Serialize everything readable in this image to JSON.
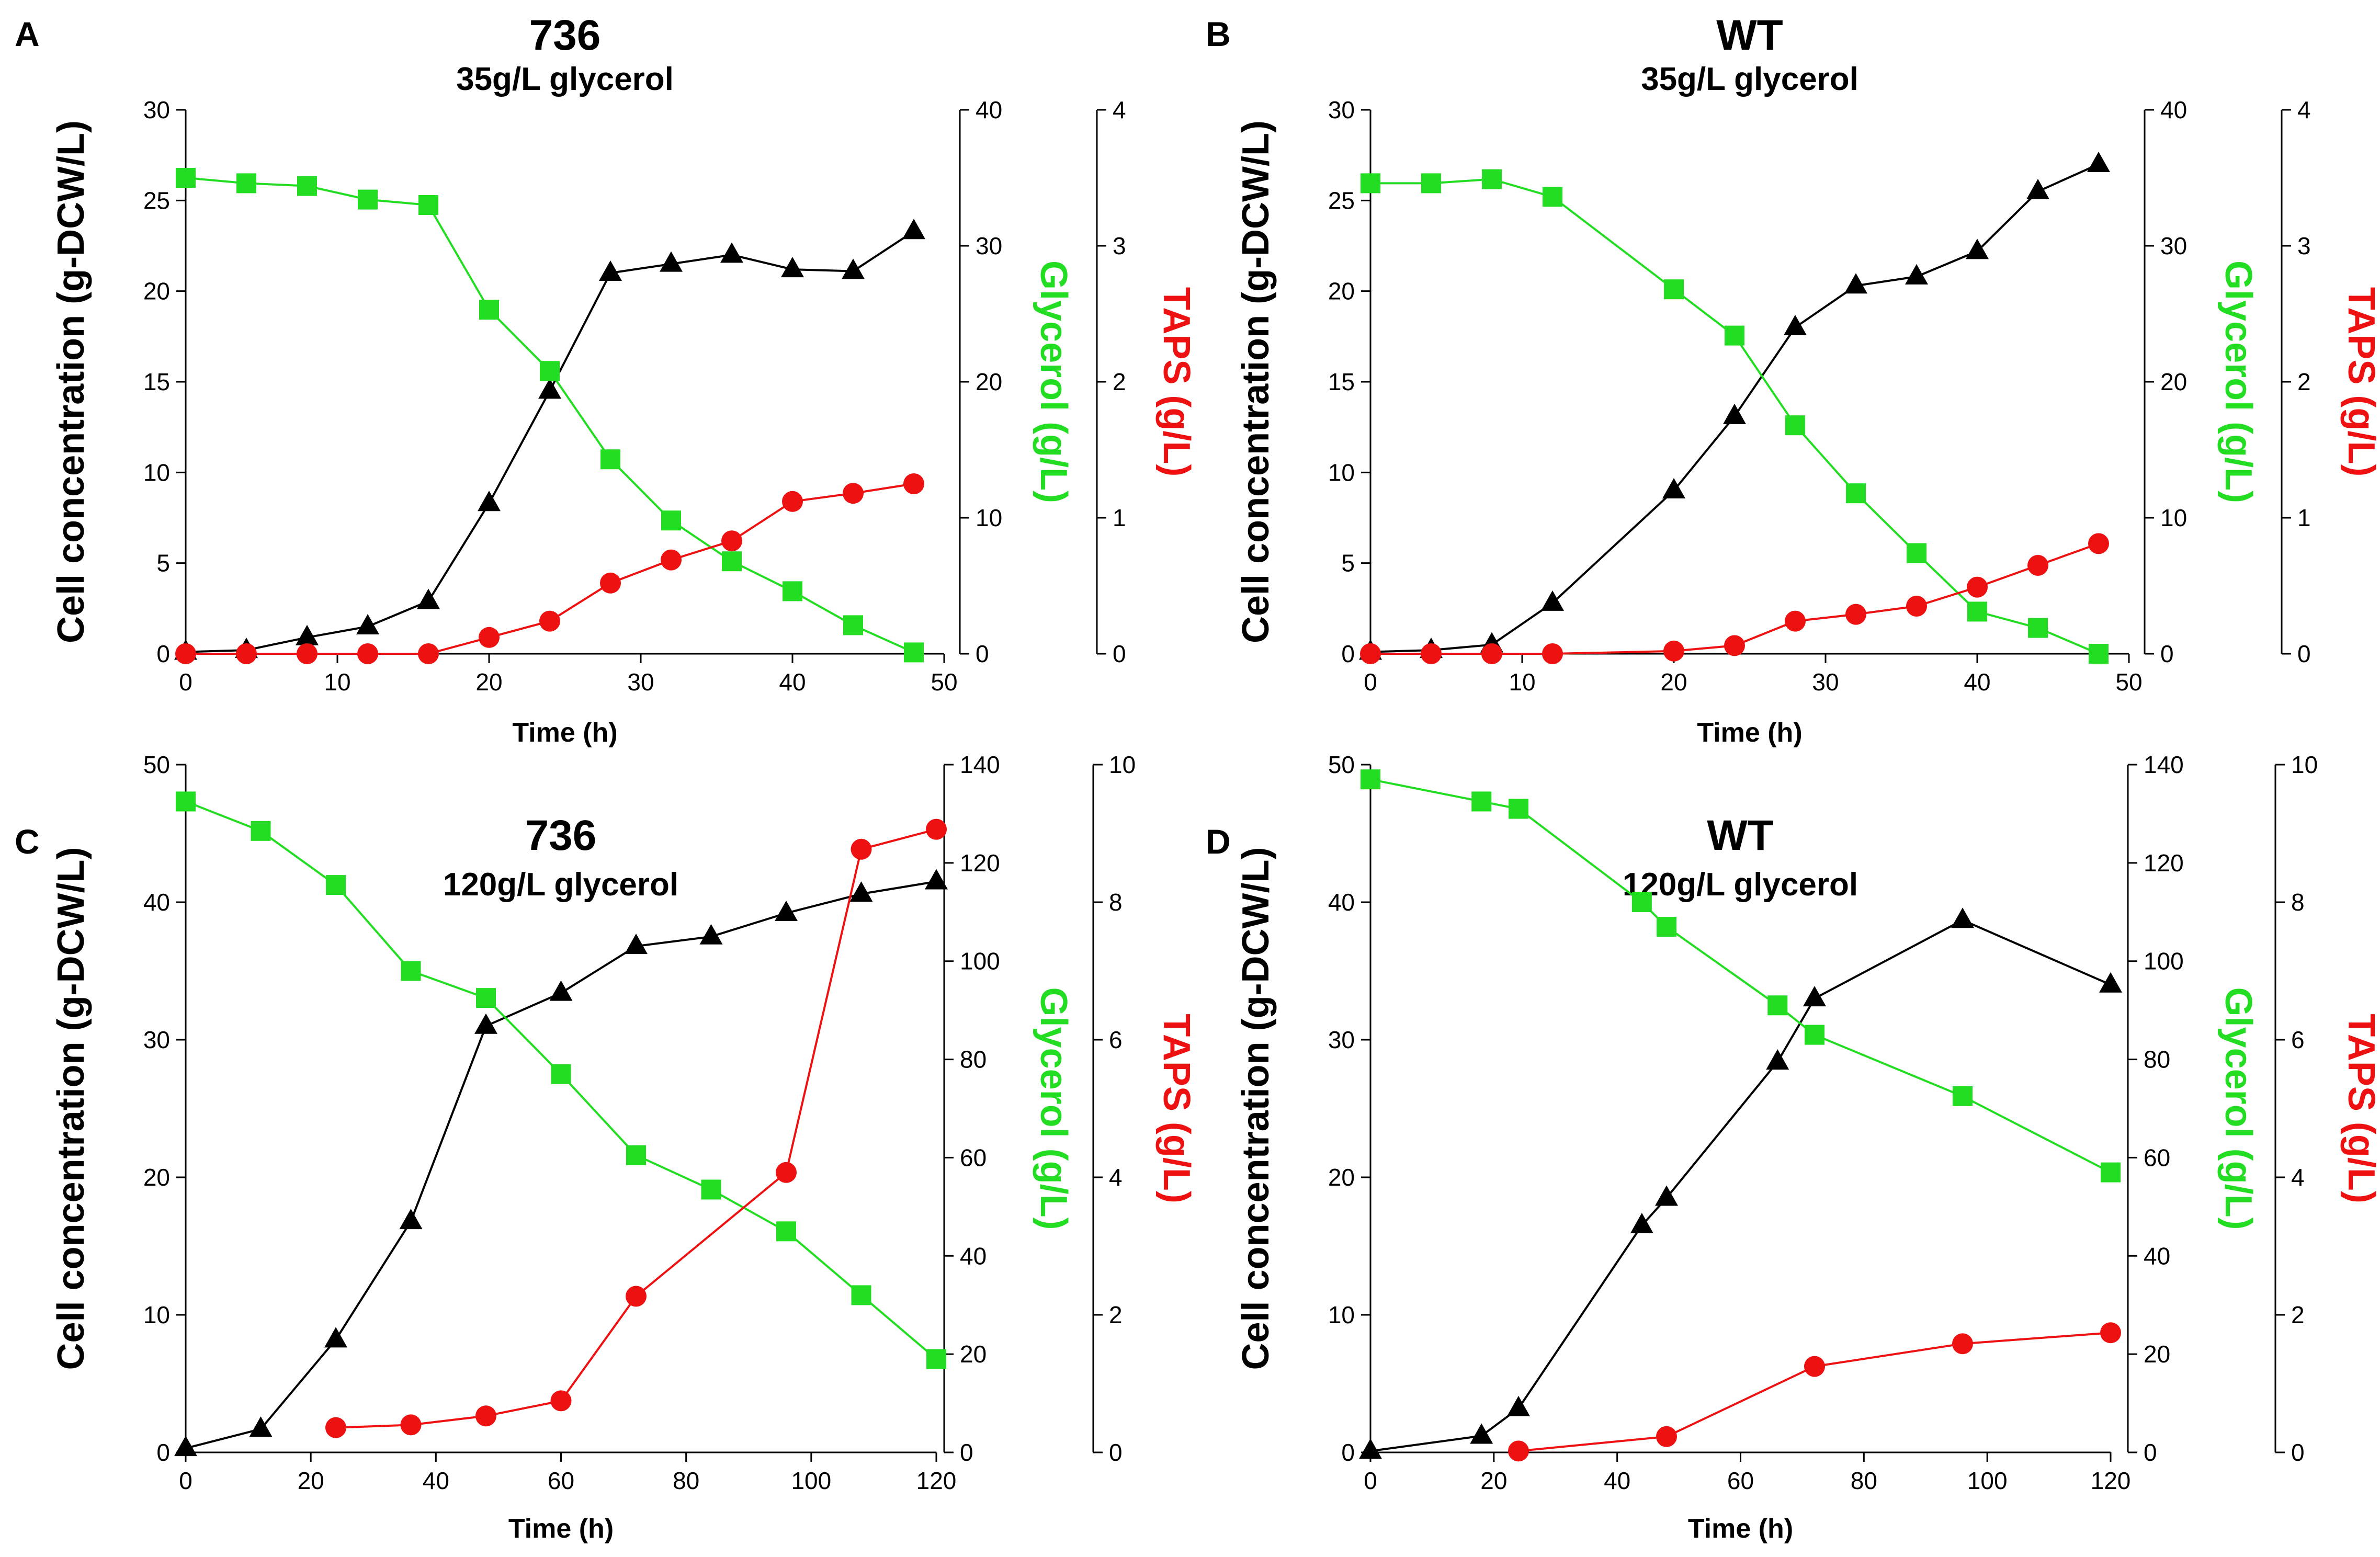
{
  "colors": {
    "cell": "#000000",
    "glycerol": "#22dd22",
    "taps": "#ee1111",
    "axis_glycerol_label": "#22dd22",
    "axis_taps_label": "#ee1111",
    "ink": "#000000"
  },
  "chart_data": [
    {
      "panel_label": "A",
      "type": "line",
      "title": "736",
      "subtitle": "35g/L glycerol",
      "xlabel": "Time (h)",
      "xlim": [
        0,
        50
      ],
      "xticks": [
        0,
        10,
        20,
        30,
        40,
        50
      ],
      "y_left": {
        "label": "Cell concentration (g-DCW/L)",
        "lim": [
          0,
          30
        ],
        "ticks": [
          0,
          5,
          10,
          15,
          20,
          25,
          30
        ]
      },
      "y_mid": {
        "label": "Glycerol (g/L)",
        "lim": [
          0,
          40
        ],
        "ticks": [
          0,
          10,
          20,
          30,
          40
        ]
      },
      "y_right": {
        "label": "TAPS (g/L)",
        "lim": [
          0,
          4
        ],
        "ticks": [
          0,
          1,
          2,
          3,
          4
        ]
      },
      "series": [
        {
          "name": "Cell concentration",
          "axis": "left",
          "marker": "triangle",
          "x": [
            0,
            4,
            8,
            12,
            16,
            20,
            24,
            28,
            32,
            36,
            40,
            44,
            48
          ],
          "values": [
            0.1,
            0.2,
            0.9,
            1.5,
            2.9,
            8.3,
            14.5,
            21.0,
            21.5,
            22.0,
            21.2,
            21.1,
            23.3
          ]
        },
        {
          "name": "Glycerol",
          "axis": "mid",
          "marker": "square",
          "x": [
            0,
            4,
            8,
            12,
            16,
            20,
            24,
            28,
            32,
            36,
            40,
            44,
            48
          ],
          "values": [
            35.0,
            34.6,
            34.4,
            33.4,
            33.0,
            25.3,
            20.8,
            14.3,
            9.8,
            6.8,
            4.6,
            2.1,
            0.1
          ]
        },
        {
          "name": "TAPS",
          "axis": "right",
          "marker": "circle",
          "x": [
            0,
            4,
            8,
            12,
            16,
            20,
            24,
            28,
            32,
            36,
            40,
            44,
            48
          ],
          "values": [
            0.0,
            0.0,
            0.0,
            0.0,
            0.0,
            0.12,
            0.24,
            0.52,
            0.69,
            0.83,
            1.12,
            1.18,
            1.25
          ]
        }
      ]
    },
    {
      "panel_label": "B",
      "type": "line",
      "title": "WT",
      "subtitle": "35g/L glycerol",
      "xlabel": "Time (h)",
      "xlim": [
        0,
        50
      ],
      "xticks": [
        0,
        10,
        20,
        30,
        40,
        50
      ],
      "y_left": {
        "label": "Cell concentration (g-DCW/L)",
        "lim": [
          0,
          30
        ],
        "ticks": [
          0,
          5,
          10,
          15,
          20,
          25,
          30
        ]
      },
      "y_mid": {
        "label": "Glycerol (g/L)",
        "lim": [
          0,
          40
        ],
        "ticks": [
          0,
          10,
          20,
          30,
          40
        ]
      },
      "y_right": {
        "label": "TAPS (g/L)",
        "lim": [
          0,
          4
        ],
        "ticks": [
          0,
          1,
          2,
          3,
          4
        ]
      },
      "series": [
        {
          "name": "Cell concentration",
          "axis": "left",
          "marker": "triangle",
          "x": [
            0,
            4,
            8,
            12,
            20,
            24,
            28,
            32,
            36,
            40,
            44,
            48
          ],
          "values": [
            0.1,
            0.2,
            0.5,
            2.8,
            9.0,
            13.1,
            18.0,
            20.3,
            20.8,
            22.2,
            25.5,
            27.0
          ]
        },
        {
          "name": "Glycerol",
          "axis": "mid",
          "marker": "square",
          "x": [
            0,
            4,
            8,
            12,
            20,
            24,
            28,
            32,
            36,
            40,
            44,
            48
          ],
          "values": [
            34.6,
            34.6,
            34.9,
            33.6,
            26.8,
            23.4,
            16.8,
            11.8,
            7.4,
            3.1,
            1.9,
            0.0
          ]
        },
        {
          "name": "TAPS",
          "axis": "right",
          "marker": "circle",
          "x": [
            0,
            4,
            8,
            12,
            20,
            24,
            28,
            32,
            36,
            40,
            44,
            48
          ],
          "values": [
            0.0,
            0.0,
            0.0,
            0.0,
            0.02,
            0.06,
            0.24,
            0.29,
            0.35,
            0.49,
            0.65,
            0.81
          ]
        }
      ]
    },
    {
      "panel_label": "C",
      "type": "line",
      "title": "736",
      "subtitle": "120g/L glycerol",
      "xlabel": "Time (h)",
      "xlim": [
        0,
        120
      ],
      "xticks": [
        0,
        20,
        40,
        60,
        80,
        100,
        120
      ],
      "y_left": {
        "label": "Cell concentration (g-DCW/L)",
        "lim": [
          0,
          50
        ],
        "ticks": [
          0,
          10,
          20,
          30,
          40,
          50
        ]
      },
      "y_mid": {
        "label": "Glycerol (g/L)",
        "lim": [
          0,
          140
        ],
        "ticks": [
          0,
          20,
          40,
          60,
          80,
          100,
          120,
          140
        ]
      },
      "y_right": {
        "label": "TAPS (g/L)",
        "lim": [
          0,
          10
        ],
        "ticks": [
          0,
          2,
          4,
          6,
          8,
          10
        ]
      },
      "series": [
        {
          "name": "Cell concentration",
          "axis": "left",
          "marker": "triangle",
          "x": [
            0,
            12,
            24,
            36,
            48,
            60,
            72,
            84,
            96,
            108,
            120
          ],
          "values": [
            0.3,
            1.7,
            8.2,
            16.8,
            31.0,
            33.4,
            36.8,
            37.5,
            39.2,
            40.6,
            41.5
          ]
        },
        {
          "name": "Glycerol",
          "axis": "mid",
          "marker": "square",
          "x": [
            0,
            12,
            24,
            36,
            48,
            60,
            72,
            84,
            96,
            108,
            120
          ],
          "values": [
            132.5,
            126.5,
            115.5,
            98.0,
            92.5,
            77.0,
            60.5,
            53.5,
            45.0,
            32.0,
            19.0
          ]
        },
        {
          "name": "TAPS",
          "axis": "right",
          "marker": "circle",
          "x": [
            24,
            36,
            48,
            60,
            72,
            96,
            108,
            120
          ],
          "values": [
            0.36,
            0.4,
            0.53,
            0.75,
            2.27,
            4.07,
            8.77,
            9.06
          ]
        }
      ]
    },
    {
      "panel_label": "D",
      "type": "line",
      "title": "WT",
      "subtitle": "120g/L glycerol",
      "xlabel": "Time (h)",
      "xlim": [
        0,
        120
      ],
      "xticks": [
        0,
        20,
        40,
        60,
        80,
        100,
        120
      ],
      "y_left": {
        "label": "Cell concentration (g-DCW/L)",
        "lim": [
          0,
          50
        ],
        "ticks": [
          0,
          10,
          20,
          30,
          40,
          50
        ]
      },
      "y_mid": {
        "label": "Glycerol (g/L)",
        "lim": [
          0,
          140
        ],
        "ticks": [
          0,
          20,
          40,
          60,
          80,
          100,
          120,
          140
        ]
      },
      "y_right": {
        "label": "TAPS (g/L)",
        "lim": [
          0,
          10
        ],
        "ticks": [
          0,
          2,
          4,
          6,
          8,
          10
        ]
      },
      "series": [
        {
          "name": "Cell concentration",
          "axis": "left",
          "marker": "triangle",
          "x": [
            0,
            18,
            24,
            44,
            48,
            66,
            72,
            96,
            120
          ],
          "values": [
            0.1,
            1.2,
            3.2,
            16.5,
            18.5,
            28.4,
            33.0,
            38.7,
            34.0
          ]
        },
        {
          "name": "Glycerol",
          "axis": "mid",
          "marker": "square",
          "x": [
            0,
            18,
            24,
            44,
            48,
            66,
            72,
            96,
            120
          ],
          "values": [
            137.0,
            132.5,
            131.0,
            112.0,
            107.0,
            91.0,
            85.0,
            72.5,
            57.0
          ]
        },
        {
          "name": "TAPS",
          "axis": "right",
          "marker": "circle",
          "x": [
            24,
            48,
            72,
            96,
            120
          ],
          "values": [
            0.02,
            0.23,
            1.25,
            1.58,
            1.74
          ]
        }
      ]
    }
  ]
}
